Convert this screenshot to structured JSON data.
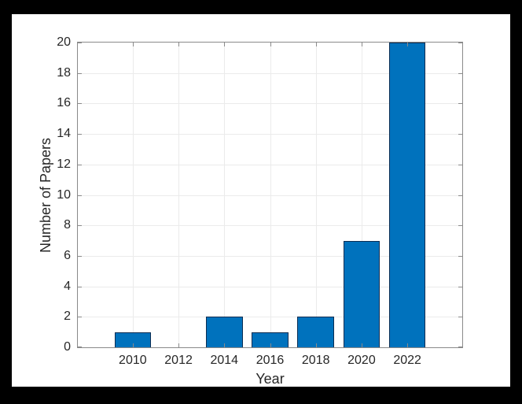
{
  "chart_data": {
    "type": "bar",
    "title": "",
    "xlabel": "Year",
    "ylabel": "Number of Papers",
    "categories": [
      2010,
      2012,
      2014,
      2016,
      2018,
      2020,
      2022
    ],
    "values": [
      1,
      0,
      2,
      1,
      2,
      7,
      20
    ],
    "xticks": [
      2010,
      2012,
      2014,
      2016,
      2018,
      2020,
      2022
    ],
    "xlim": [
      2007.6,
      2024.4
    ],
    "ylim": [
      0,
      20
    ],
    "ytick_step": 2,
    "bar_width_years": 1.6,
    "grid": true,
    "legend": null,
    "colors": {
      "bar_fill": "#0072BD",
      "bar_edge": "#0a2d52",
      "grid_line": "#ebebeb",
      "axis_box": "#8a8a8a",
      "tick_text": "#262626",
      "figure_background": "#ffffff",
      "frame_background": "#000000"
    }
  }
}
